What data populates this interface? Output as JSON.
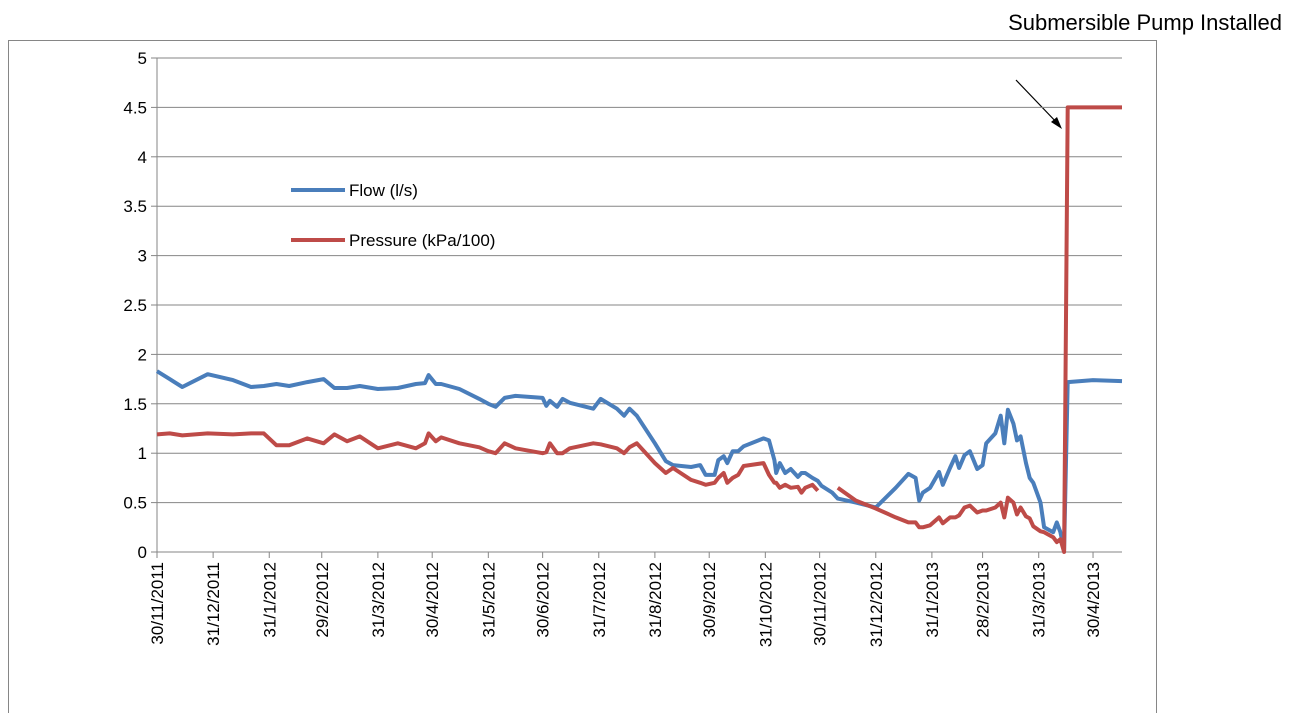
{
  "chart_data": {
    "type": "line",
    "annotation": "Submersible Pump Installed",
    "x": [
      "30/11/2011",
      "7/12/2011",
      "14/12/2011",
      "28/12/2011",
      "11/1/2012",
      "21/1/2012",
      "28/1/2012",
      "4/2/2012",
      "11/2/2012",
      "21/2/2012",
      "1/3/2012",
      "7/3/2012",
      "14/3/2012",
      "21/3/2012",
      "31/3/2012",
      "11/4/2012",
      "21/4/2012",
      "26/4/2012",
      "28/4/2012",
      "2/5/2012",
      "5/5/2012",
      "15/5/2012",
      "26/5/2012",
      "31/5/2012",
      "4/6/2012",
      "9/6/2012",
      "15/6/2012",
      "30/6/2012",
      "2/7/2012",
      "4/7/2012",
      "8/7/2012",
      "11/7/2012",
      "15/7/2012",
      "28/7/2012",
      "1/8/2012",
      "10/8/2012",
      "14/8/2012",
      "17/8/2012",
      "21/8/2012",
      "31/8/2012",
      "6/9/2012",
      "10/9/2012",
      "20/9/2012",
      "25/9/2012",
      "28/9/2012",
      "3/10/2012",
      "5/10/2012",
      "8/10/2012",
      "10/10/2012",
      "13/10/2012",
      "16/10/2012",
      "19/10/2012",
      "30/10/2012",
      "2/11/2012",
      "5/11/2012",
      "6/11/2012",
      "8/11/2012",
      "11/11/2012",
      "14/11/2012",
      "18/11/2012",
      "20/11/2012",
      "22/11/2012",
      "26/11/2012",
      "29/11/2012",
      "1/12/2012",
      "7/12/2012",
      "10/12/2012",
      "20/12/2012",
      "31/12/2012",
      "11/1/2013",
      "18/1/2013",
      "22/1/2013",
      "24/1/2013",
      "26/1/2013",
      "30/1/2013",
      "4/2/2013",
      "6/2/2013",
      "10/2/2013",
      "13/2/2013",
      "15/2/2013",
      "18/2/2013",
      "21/2/2013",
      "25/2/2013",
      "28/2/2013",
      "2/3/2013",
      "7/3/2013",
      "10/3/2013",
      "12/3/2013",
      "14/3/2013",
      "17/3/2013",
      "19/3/2013",
      "21/3/2013",
      "24/3/2013",
      "26/3/2013",
      "28/3/2013",
      "1/4/2013",
      "3/4/2013",
      "8/4/2013",
      "10/4/2013",
      "12/4/2013",
      "14/4/2013",
      "16/4/2013",
      "30/4/2013",
      "16/5/2013"
    ],
    "series": [
      {
        "name": "Flow (l/s)",
        "color": "#4a7ebb",
        "values": [
          1.83,
          1.75,
          1.67,
          1.8,
          1.74,
          1.67,
          1.68,
          1.7,
          1.68,
          1.72,
          1.75,
          1.66,
          1.66,
          1.68,
          1.65,
          1.66,
          1.7,
          1.71,
          1.79,
          1.7,
          1.7,
          1.65,
          1.55,
          1.5,
          1.47,
          1.56,
          1.58,
          1.56,
          1.48,
          1.53,
          1.47,
          1.55,
          1.51,
          1.45,
          1.55,
          1.45,
          1.38,
          1.45,
          1.38,
          1.1,
          0.92,
          0.88,
          0.86,
          0.88,
          0.78,
          0.78,
          0.93,
          0.97,
          0.9,
          1.02,
          1.02,
          1.07,
          1.15,
          1.13,
          0.93,
          0.8,
          0.9,
          0.8,
          0.84,
          0.76,
          0.8,
          0.8,
          0.75,
          0.72,
          0.67,
          0.6,
          0.54,
          0.5,
          0.45,
          0.65,
          0.79,
          0.75,
          0.52,
          0.6,
          0.65,
          0.81,
          0.68,
          0.85,
          0.97,
          0.85,
          0.98,
          1.02,
          0.84,
          0.88,
          1.1,
          1.2,
          1.38,
          1.1,
          1.44,
          1.3,
          1.13,
          1.17,
          0.9,
          0.75,
          0.7,
          0.5,
          0.25,
          0.2,
          0.3,
          0.2,
          0.02,
          1.72,
          1.74,
          1.73
        ]
      },
      {
        "name": "Pressure (kPa/100)",
        "color": "#be4b48",
        "values": [
          1.19,
          1.2,
          1.18,
          1.2,
          1.19,
          1.2,
          1.2,
          1.08,
          1.08,
          1.15,
          1.1,
          1.19,
          1.12,
          1.17,
          1.05,
          1.1,
          1.05,
          1.1,
          1.2,
          1.12,
          1.16,
          1.1,
          1.06,
          1.02,
          1.0,
          1.1,
          1.05,
          1.0,
          1.01,
          1.1,
          1.0,
          1.0,
          1.05,
          1.1,
          1.09,
          1.05,
          1.0,
          1.06,
          1.1,
          0.9,
          0.8,
          0.85,
          0.73,
          0.7,
          0.68,
          0.7,
          0.75,
          0.8,
          0.7,
          0.75,
          0.78,
          0.87,
          0.9,
          0.78,
          0.7,
          0.7,
          0.65,
          0.68,
          0.65,
          0.66,
          0.6,
          0.65,
          0.68,
          0.62,
          null,
          null,
          0.65,
          0.52,
          0.44,
          0.35,
          0.3,
          0.3,
          0.25,
          0.25,
          0.27,
          0.35,
          0.29,
          0.35,
          0.35,
          0.37,
          0.45,
          0.47,
          0.4,
          0.42,
          0.42,
          0.45,
          0.5,
          0.35,
          0.55,
          0.5,
          0.38,
          0.45,
          0.36,
          0.34,
          0.26,
          0.21,
          0.2,
          0.15,
          0.1,
          0.13,
          0.0,
          4.5,
          4.5,
          4.5
        ]
      }
    ],
    "xlim": [
      "30/11/2011",
      "16/5/2013"
    ],
    "xticks": [
      "30/11/2011",
      "31/12/2011",
      "31/1/2012",
      "29/2/2012",
      "31/3/2012",
      "30/4/2012",
      "31/5/2012",
      "30/6/2012",
      "31/7/2012",
      "31/8/2012",
      "30/9/2012",
      "31/10/2012",
      "30/11/2012",
      "31/12/2012",
      "31/1/2013",
      "28/2/2013",
      "31/3/2013",
      "30/4/2013"
    ],
    "ylim": [
      0,
      5
    ],
    "yticks": [
      0,
      0.5,
      1,
      1.5,
      2,
      2.5,
      3,
      3.5,
      4,
      4.5,
      5
    ],
    "grid": true,
    "legend_position": "upper-left"
  }
}
